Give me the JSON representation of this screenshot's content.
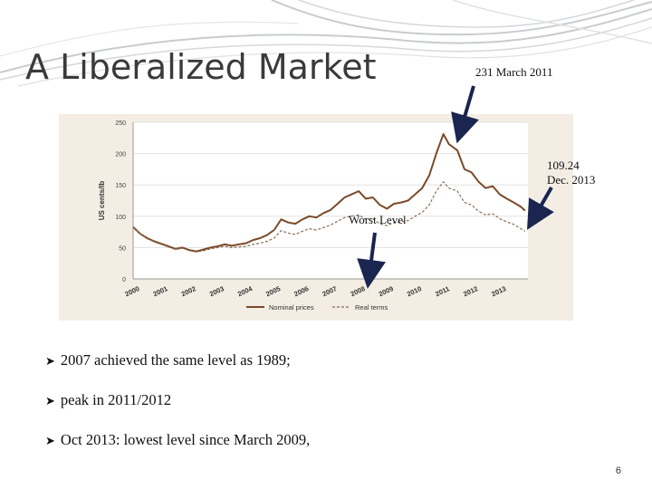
{
  "slide": {
    "title": "A Liberalized Market",
    "page_number": "6"
  },
  "annotations": {
    "peak_label": "231 March 2011",
    "last_label_value": "109.24",
    "last_label_date": "Dec. 2013",
    "worst_label": "Worst Level"
  },
  "bullets": [
    "2007 achieved the same level as 1989;",
    "peak in 2011/2012",
    "Oct 2013: lowest level since March 2009,"
  ],
  "colors": {
    "nominal": "#7b4a2a",
    "real": "#8a6f58",
    "panel": "#f3ede4",
    "plot_bg": "#ffffff",
    "arrow": "#1a2550",
    "deco": "#c8ccd0"
  },
  "chart_data": {
    "type": "line",
    "ylabel": "US cents/lb",
    "ylim": [
      0,
      250
    ],
    "yticks": [
      0,
      50,
      100,
      150,
      200,
      250
    ],
    "xlim": [
      2000,
      2014
    ],
    "xticks": [
      "2000",
      "2001",
      "2002",
      "2003",
      "2004",
      "2005",
      "2006",
      "2007",
      "2008",
      "2009",
      "2010",
      "2011",
      "2012",
      "2013"
    ],
    "legend_position": "bottom",
    "grid": true,
    "series": [
      {
        "name": "Nominal prices",
        "style": "solid",
        "x": [
          2000.0,
          2000.25,
          2000.5,
          2000.75,
          2001.0,
          2001.25,
          2001.5,
          2001.75,
          2002.0,
          2002.25,
          2002.5,
          2002.75,
          2003.0,
          2003.25,
          2003.5,
          2003.75,
          2004.0,
          2004.25,
          2004.5,
          2004.75,
          2005.0,
          2005.25,
          2005.5,
          2005.75,
          2006.0,
          2006.25,
          2006.5,
          2006.75,
          2007.0,
          2007.25,
          2007.5,
          2007.75,
          2008.0,
          2008.25,
          2008.5,
          2008.75,
          2009.0,
          2009.25,
          2009.5,
          2009.75,
          2010.0,
          2010.25,
          2010.5,
          2010.75,
          2011.0,
          2011.2,
          2011.5,
          2011.75,
          2012.0,
          2012.25,
          2012.5,
          2012.75,
          2013.0,
          2013.25,
          2013.5,
          2013.75,
          2013.9
        ],
        "values": [
          83,
          72,
          65,
          60,
          56,
          52,
          48,
          50,
          46,
          44,
          47,
          50,
          52,
          55,
          53,
          55,
          57,
          62,
          65,
          70,
          78,
          95,
          90,
          88,
          95,
          100,
          98,
          105,
          110,
          120,
          130,
          135,
          140,
          128,
          130,
          118,
          112,
          120,
          122,
          125,
          135,
          145,
          165,
          200,
          231,
          215,
          205,
          175,
          170,
          155,
          145,
          148,
          135,
          128,
          122,
          115,
          109
        ]
      },
      {
        "name": "Real terms",
        "style": "dashed",
        "x": [
          2000.0,
          2000.25,
          2000.5,
          2000.75,
          2001.0,
          2001.25,
          2001.5,
          2001.75,
          2002.0,
          2002.25,
          2002.5,
          2002.75,
          2003.0,
          2003.25,
          2003.5,
          2003.75,
          2004.0,
          2004.25,
          2004.5,
          2004.75,
          2005.0,
          2005.25,
          2005.5,
          2005.75,
          2006.0,
          2006.25,
          2006.5,
          2006.75,
          2007.0,
          2007.25,
          2007.5,
          2007.75,
          2008.0,
          2008.25,
          2008.5,
          2008.75,
          2009.0,
          2009.25,
          2009.5,
          2009.75,
          2010.0,
          2010.25,
          2010.5,
          2010.75,
          2011.0,
          2011.2,
          2011.5,
          2011.75,
          2012.0,
          2012.25,
          2012.5,
          2012.75,
          2013.0,
          2013.25,
          2013.5,
          2013.75,
          2013.9
        ],
        "values": [
          83,
          72,
          64,
          59,
          55,
          51,
          47,
          49,
          45,
          43,
          45,
          48,
          50,
          52,
          50,
          51,
          52,
          55,
          57,
          60,
          65,
          77,
          73,
          71,
          76,
          80,
          78,
          82,
          86,
          92,
          98,
          100,
          102,
          95,
          96,
          88,
          85,
          90,
          91,
          93,
          100,
          106,
          118,
          140,
          155,
          145,
          140,
          122,
          118,
          108,
          102,
          104,
          96,
          91,
          87,
          80,
          76
        ]
      }
    ]
  }
}
